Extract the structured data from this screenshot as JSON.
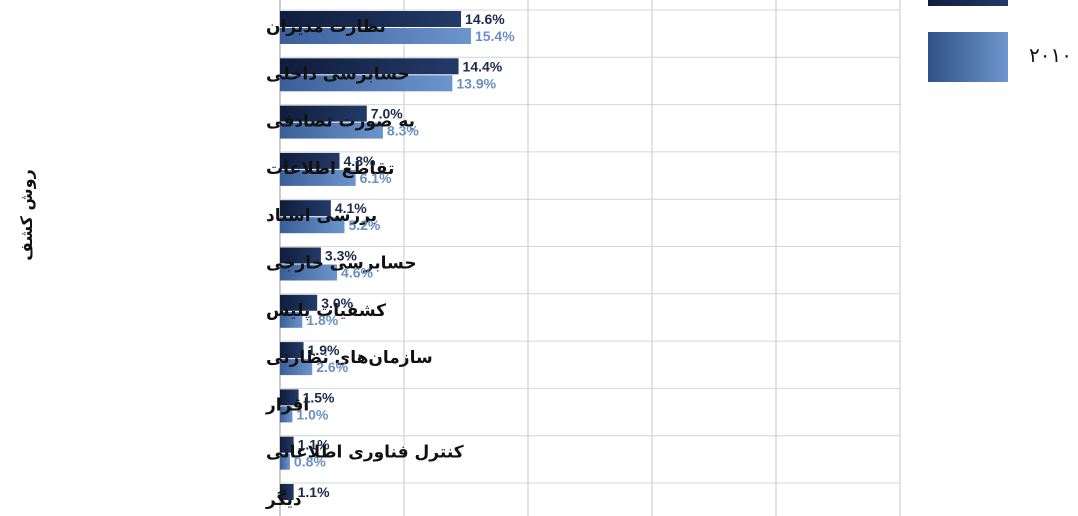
{
  "chart_data": {
    "type": "bar",
    "orientation": "horizontal",
    "ylabel": "روش کشف",
    "categories": [
      "نظارت مدیران",
      "حسابرسی داخلی",
      "به صورت تصادفی",
      "تقاطع اطلاعات",
      "بررسی اسناد",
      "حسابرسی خارجی",
      "کشفیات پلیس",
      "سازمان‌های نظارتی",
      "اقرار",
      "کنترل فناوری اطلاعاتی",
      "دیگر"
    ],
    "series": [
      {
        "values": [
          14.6,
          14.4,
          7.0,
          4.8,
          4.1,
          3.3,
          3.0,
          1.9,
          1.5,
          1.1,
          1.1
        ],
        "labels": [
          "14.6%",
          "14.4%",
          "7.0%",
          "4.8%",
          "4.1%",
          "3.3%",
          "3.0%",
          "1.9%",
          "1.5%",
          "1.1%",
          "1.1%"
        ],
        "color": "#1b2a4e"
      },
      {
        "name": "۲۰۱۰",
        "values": [
          15.4,
          13.9,
          8.3,
          6.1,
          5.2,
          4.6,
          1.8,
          2.6,
          1.0,
          0.8,
          null
        ],
        "labels": [
          "15.4%",
          "13.9%",
          "8.3%",
          "6.1%",
          "5.2%",
          "4.6%",
          "1.8%",
          "2.6%",
          "1.0%",
          "0.8%",
          null
        ],
        "color": "#4d78b8"
      }
    ],
    "grid": true,
    "legend_position": "top-right"
  }
}
